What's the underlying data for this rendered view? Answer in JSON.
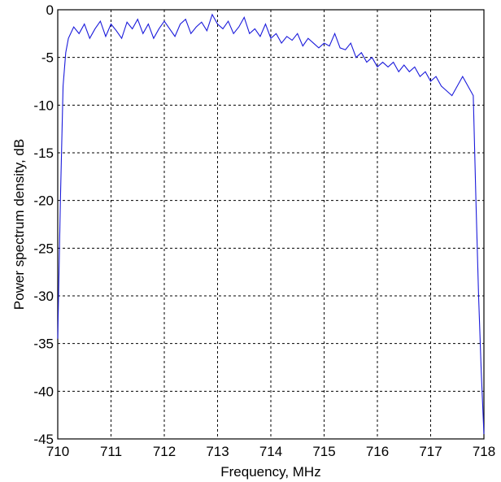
{
  "chart_data": {
    "type": "line",
    "xlabel": "Frequency, MHz",
    "ylabel": "Power spectrum density, dB",
    "xlim": [
      710,
      718
    ],
    "ylim": [
      -45,
      0
    ],
    "xticks": [
      710,
      711,
      712,
      713,
      714,
      715,
      716,
      717,
      718
    ],
    "yticks": [
      0,
      -5,
      -10,
      -15,
      -20,
      -25,
      -30,
      -35,
      -40,
      -45
    ],
    "grid": true,
    "line_color": "#1a1adb",
    "series": [
      {
        "x": [
          710.0,
          710.05,
          710.1,
          710.15,
          710.2,
          710.3,
          710.4,
          710.5,
          710.6,
          710.7,
          710.8,
          710.9,
          711.0,
          711.1,
          711.2,
          711.3,
          711.4,
          711.5,
          711.6,
          711.7,
          711.8,
          711.9,
          712.0,
          712.1,
          712.2,
          712.3,
          712.4,
          712.5,
          712.6,
          712.7,
          712.8,
          712.9,
          713.0,
          713.1,
          713.2,
          713.3,
          713.4,
          713.5,
          713.6,
          713.7,
          713.8,
          713.9,
          714.0,
          714.1,
          714.2,
          714.3,
          714.4,
          714.5,
          714.6,
          714.7,
          714.8,
          714.9,
          715.0,
          715.1,
          715.2,
          715.3,
          715.4,
          715.5,
          715.6,
          715.7,
          715.8,
          715.9,
          716.0,
          716.1,
          716.2,
          716.3,
          716.4,
          716.5,
          716.6,
          716.7,
          716.8,
          716.9,
          717.0,
          717.1,
          717.2,
          717.3,
          717.4,
          717.5,
          717.6,
          717.7,
          717.75,
          717.8,
          717.85,
          717.9,
          717.95,
          718.0
        ],
        "y": [
          -34.5,
          -20,
          -8,
          -4.5,
          -3.0,
          -1.8,
          -2.5,
          -1.5,
          -3.0,
          -2.0,
          -1.2,
          -2.8,
          -1.5,
          -2.2,
          -3.0,
          -1.3,
          -2.0,
          -1.0,
          -2.5,
          -1.5,
          -3.0,
          -2.0,
          -1.2,
          -2.0,
          -2.8,
          -1.5,
          -1.0,
          -2.5,
          -1.8,
          -1.3,
          -2.2,
          -0.5,
          -1.5,
          -2.0,
          -1.2,
          -2.5,
          -1.8,
          -0.8,
          -2.5,
          -2.0,
          -2.8,
          -1.5,
          -3.0,
          -2.5,
          -3.5,
          -2.8,
          -3.2,
          -2.5,
          -3.8,
          -3.0,
          -3.5,
          -4.0,
          -3.5,
          -3.8,
          -2.5,
          -4.0,
          -4.2,
          -3.5,
          -5.0,
          -4.5,
          -5.5,
          -5.0,
          -6.0,
          -5.5,
          -6.0,
          -5.5,
          -6.5,
          -5.8,
          -6.5,
          -6.0,
          -7.0,
          -6.5,
          -7.5,
          -7.0,
          -8.0,
          -8.5,
          -9.0,
          -8.0,
          -7.0,
          -8.0,
          -8.5,
          -9.0,
          -20,
          -30,
          -38,
          -44.5
        ]
      }
    ]
  }
}
